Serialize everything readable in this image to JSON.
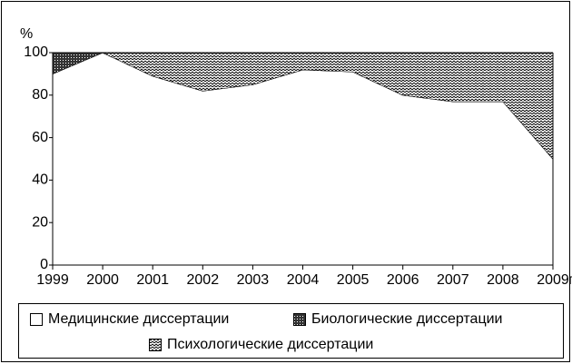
{
  "chart_data": {
    "type": "area",
    "stacked": true,
    "y_label": "%",
    "x_unit": "г",
    "x": [
      1999,
      2000,
      2001,
      2002,
      2003,
      2004,
      2005,
      2006,
      2007,
      2008,
      2009
    ],
    "xlim": [
      1999,
      2009
    ],
    "xticks": [
      1999,
      2000,
      2001,
      2002,
      2003,
      2004,
      2005,
      2006,
      2007,
      2008,
      2009
    ],
    "ylim": [
      0,
      100
    ],
    "yticks": [
      0,
      20,
      40,
      60,
      80,
      100
    ],
    "series": [
      {
        "name": "Медицинские диссертации",
        "color": "#ffffff",
        "pattern": "none",
        "values": [
          90,
          100,
          89,
          82,
          85,
          92,
          91,
          80,
          77,
          77,
          50
        ]
      },
      {
        "name": "Биологические диссертации",
        "color": "#666666",
        "pattern": "dots",
        "values": [
          10,
          0,
          0,
          0,
          0,
          0,
          0,
          0,
          0,
          0,
          0
        ]
      },
      {
        "name": "Психологические диссертации",
        "color": "#ffffff",
        "pattern": "waves",
        "values": [
          0,
          0,
          11,
          18,
          15,
          8,
          9,
          20,
          23,
          23,
          50
        ]
      }
    ]
  }
}
